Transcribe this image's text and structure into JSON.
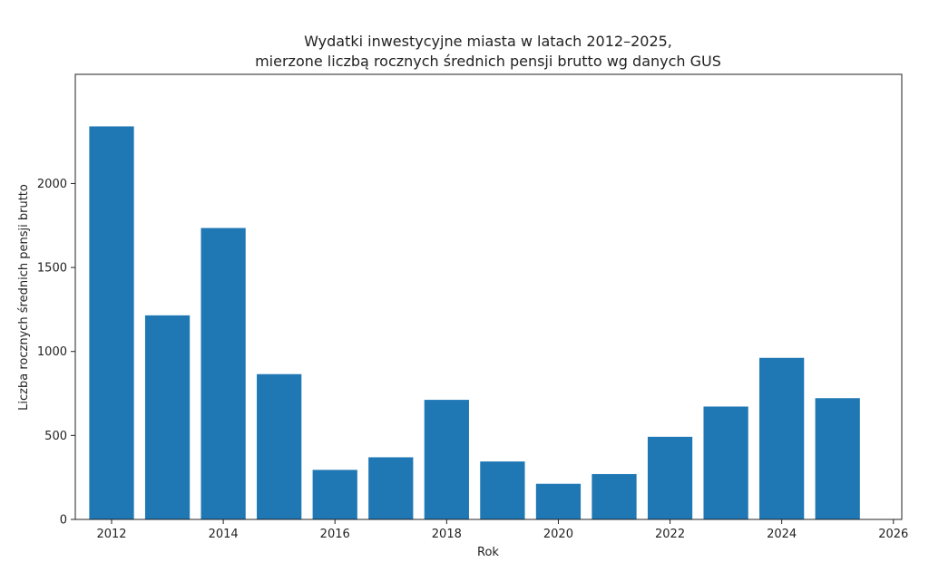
{
  "chart_data": {
    "type": "bar",
    "title": [
      "Wydatki inwestycyjne miasta w latach 2012–2025,",
      "mierzone liczbą rocznych średnich pensji brutto wg danych GUS"
    ],
    "xlabel": "Rok",
    "ylabel": "Liczba rocznych średnich pensji brutto",
    "categories": [
      2012,
      2013,
      2014,
      2015,
      2016,
      2017,
      2018,
      2019,
      2020,
      2021,
      2022,
      2023,
      2024,
      2025
    ],
    "values": [
      2340,
      1215,
      1735,
      865,
      295,
      370,
      712,
      345,
      212,
      270,
      492,
      672,
      962,
      722
    ],
    "xlim": [
      2011.35,
      2026.15
    ],
    "ylim": [
      0,
      2650
    ],
    "xticks": [
      2012,
      2014,
      2016,
      2018,
      2020,
      2022,
      2024,
      2026
    ],
    "yticks": [
      0,
      500,
      1000,
      1500,
      2000
    ],
    "bar_color": "#1f77b4",
    "bar_width": 0.8,
    "grid": false,
    "legend": "none"
  }
}
